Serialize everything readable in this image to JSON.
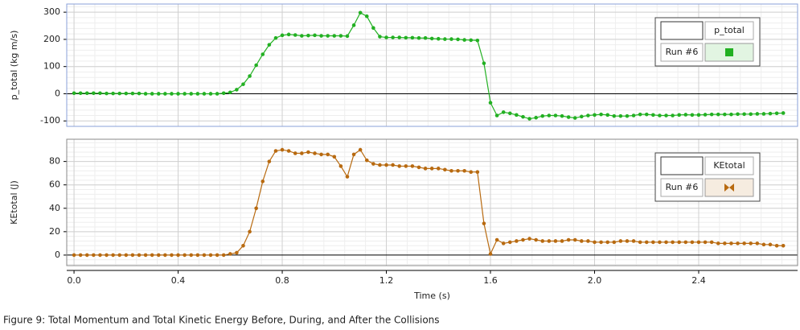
{
  "caption": "Figure 9: Total Momentum and Total Kinetic Energy Before, During, and After the Collisions",
  "chart_data": [
    {
      "type": "line",
      "ylabel": "p_total (kg m/s)",
      "run": "Run #6",
      "legend": "upper right",
      "grid": true,
      "xlim": [
        -0.028,
        2.78
      ],
      "ylim": [
        -120,
        330
      ],
      "yticks": [
        -100,
        0,
        100,
        200,
        300
      ],
      "x": [
        0,
        0.025,
        0.05,
        0.075,
        0.1,
        0.125,
        0.15,
        0.175,
        0.2,
        0.225,
        0.25,
        0.275,
        0.3,
        0.325,
        0.35,
        0.375,
        0.4,
        0.425,
        0.45,
        0.475,
        0.5,
        0.525,
        0.55,
        0.575,
        0.6,
        0.625,
        0.65,
        0.675,
        0.7,
        0.725,
        0.75,
        0.775,
        0.8,
        0.825,
        0.85,
        0.875,
        0.9,
        0.925,
        0.95,
        0.975,
        1,
        1.025,
        1.05,
        1.075,
        1.1,
        1.125,
        1.15,
        1.175,
        1.2,
        1.225,
        1.25,
        1.275,
        1.3,
        1.325,
        1.35,
        1.375,
        1.4,
        1.425,
        1.45,
        1.475,
        1.5,
        1.525,
        1.55,
        1.575,
        1.6,
        1.625,
        1.65,
        1.675,
        1.7,
        1.725,
        1.75,
        1.775,
        1.8,
        1.825,
        1.85,
        1.875,
        1.9,
        1.925,
        1.95,
        1.975,
        2,
        2.025,
        2.05,
        2.075,
        2.1,
        2.125,
        2.15,
        2.175,
        2.2,
        2.225,
        2.25,
        2.275,
        2.3,
        2.325,
        2.35,
        2.375,
        2.4,
        2.425,
        2.45,
        2.475,
        2.5,
        2.525,
        2.55,
        2.575,
        2.6,
        2.625,
        2.65,
        2.675,
        2.7,
        2.725
      ],
      "series": [
        {
          "name": "p_total",
          "color": "#22b022",
          "values": [
            2,
            2,
            2,
            2,
            2,
            1,
            1,
            1,
            1,
            1,
            1,
            0,
            0,
            0,
            0,
            0,
            0,
            0,
            0,
            0,
            0,
            0,
            0,
            2,
            5,
            15,
            35,
            65,
            105,
            145,
            180,
            205,
            215,
            218,
            216,
            213,
            214,
            215,
            213,
            213,
            213,
            213,
            212,
            252,
            298,
            285,
            242,
            210,
            207,
            207,
            207,
            206,
            206,
            205,
            205,
            203,
            202,
            201,
            201,
            200,
            198,
            197,
            196,
            112,
            -33,
            -80,
            -68,
            -72,
            -78,
            -85,
            -92,
            -88,
            -82,
            -80,
            -80,
            -82,
            -86,
            -89,
            -84,
            -80,
            -78,
            -76,
            -78,
            -82,
            -82,
            -82,
            -80,
            -76,
            -76,
            -78,
            -80,
            -80,
            -80,
            -78,
            -77,
            -78,
            -78,
            -77,
            -76,
            -76,
            -76,
            -76,
            -75,
            -75,
            -75,
            -74,
            -74,
            -73,
            -72,
            -71
          ]
        }
      ]
    },
    {
      "type": "line",
      "ylabel": "KEtotal (J)",
      "xlabel": "Time (s)",
      "run": "Run #6",
      "legend": "upper right",
      "grid": true,
      "xlim": [
        -0.028,
        2.78
      ],
      "ylim": [
        -9,
        99
      ],
      "yticks": [
        0,
        20,
        40,
        60,
        80
      ],
      "xticks": [
        {
          "value": 0,
          "label": "0.0"
        },
        0.4,
        0.8,
        1.2,
        1.6,
        {
          "value": 2,
          "label": "2.0"
        },
        2.4
      ],
      "x": [
        0,
        0.025,
        0.05,
        0.075,
        0.1,
        0.125,
        0.15,
        0.175,
        0.2,
        0.225,
        0.25,
        0.275,
        0.3,
        0.325,
        0.35,
        0.375,
        0.4,
        0.425,
        0.45,
        0.475,
        0.5,
        0.525,
        0.55,
        0.575,
        0.6,
        0.625,
        0.65,
        0.675,
        0.7,
        0.725,
        0.75,
        0.775,
        0.8,
        0.825,
        0.85,
        0.875,
        0.9,
        0.925,
        0.95,
        0.975,
        1,
        1.025,
        1.05,
        1.075,
        1.1,
        1.125,
        1.15,
        1.175,
        1.2,
        1.225,
        1.25,
        1.275,
        1.3,
        1.325,
        1.35,
        1.375,
        1.4,
        1.425,
        1.45,
        1.475,
        1.5,
        1.525,
        1.55,
        1.575,
        1.6,
        1.625,
        1.65,
        1.675,
        1.7,
        1.725,
        1.75,
        1.775,
        1.8,
        1.825,
        1.85,
        1.875,
        1.9,
        1.925,
        1.95,
        1.975,
        2,
        2.025,
        2.05,
        2.075,
        2.1,
        2.125,
        2.15,
        2.175,
        2.2,
        2.225,
        2.25,
        2.275,
        2.3,
        2.325,
        2.35,
        2.375,
        2.4,
        2.425,
        2.45,
        2.475,
        2.5,
        2.525,
        2.55,
        2.575,
        2.6,
        2.625,
        2.65,
        2.675,
        2.7,
        2.725
      ],
      "series": [
        {
          "name": "KEtotal",
          "color": "#b86a10",
          "values": [
            0,
            0,
            0,
            0,
            0,
            0,
            0,
            0,
            0,
            0,
            0,
            0,
            0,
            0,
            0,
            0,
            0,
            0,
            0,
            0,
            0,
            0,
            0,
            0,
            1,
            2,
            8,
            20,
            40,
            63,
            80,
            89,
            90,
            89,
            87,
            87,
            88,
            87,
            86,
            86,
            84,
            76,
            67,
            86,
            90,
            81,
            78,
            77,
            77,
            77,
            76,
            76,
            76,
            75,
            74,
            74,
            74,
            73,
            72,
            72,
            72,
            71,
            71,
            27,
            1,
            13,
            10,
            11,
            12,
            13,
            14,
            13,
            12,
            12,
            12,
            12,
            13,
            13,
            12,
            12,
            11,
            11,
            11,
            11,
            12,
            12,
            12,
            11,
            11,
            11,
            11,
            11,
            11,
            11,
            11,
            11,
            11,
            11,
            11,
            10,
            10,
            10,
            10,
            10,
            10,
            10,
            9,
            9,
            8,
            8
          ]
        }
      ]
    }
  ]
}
